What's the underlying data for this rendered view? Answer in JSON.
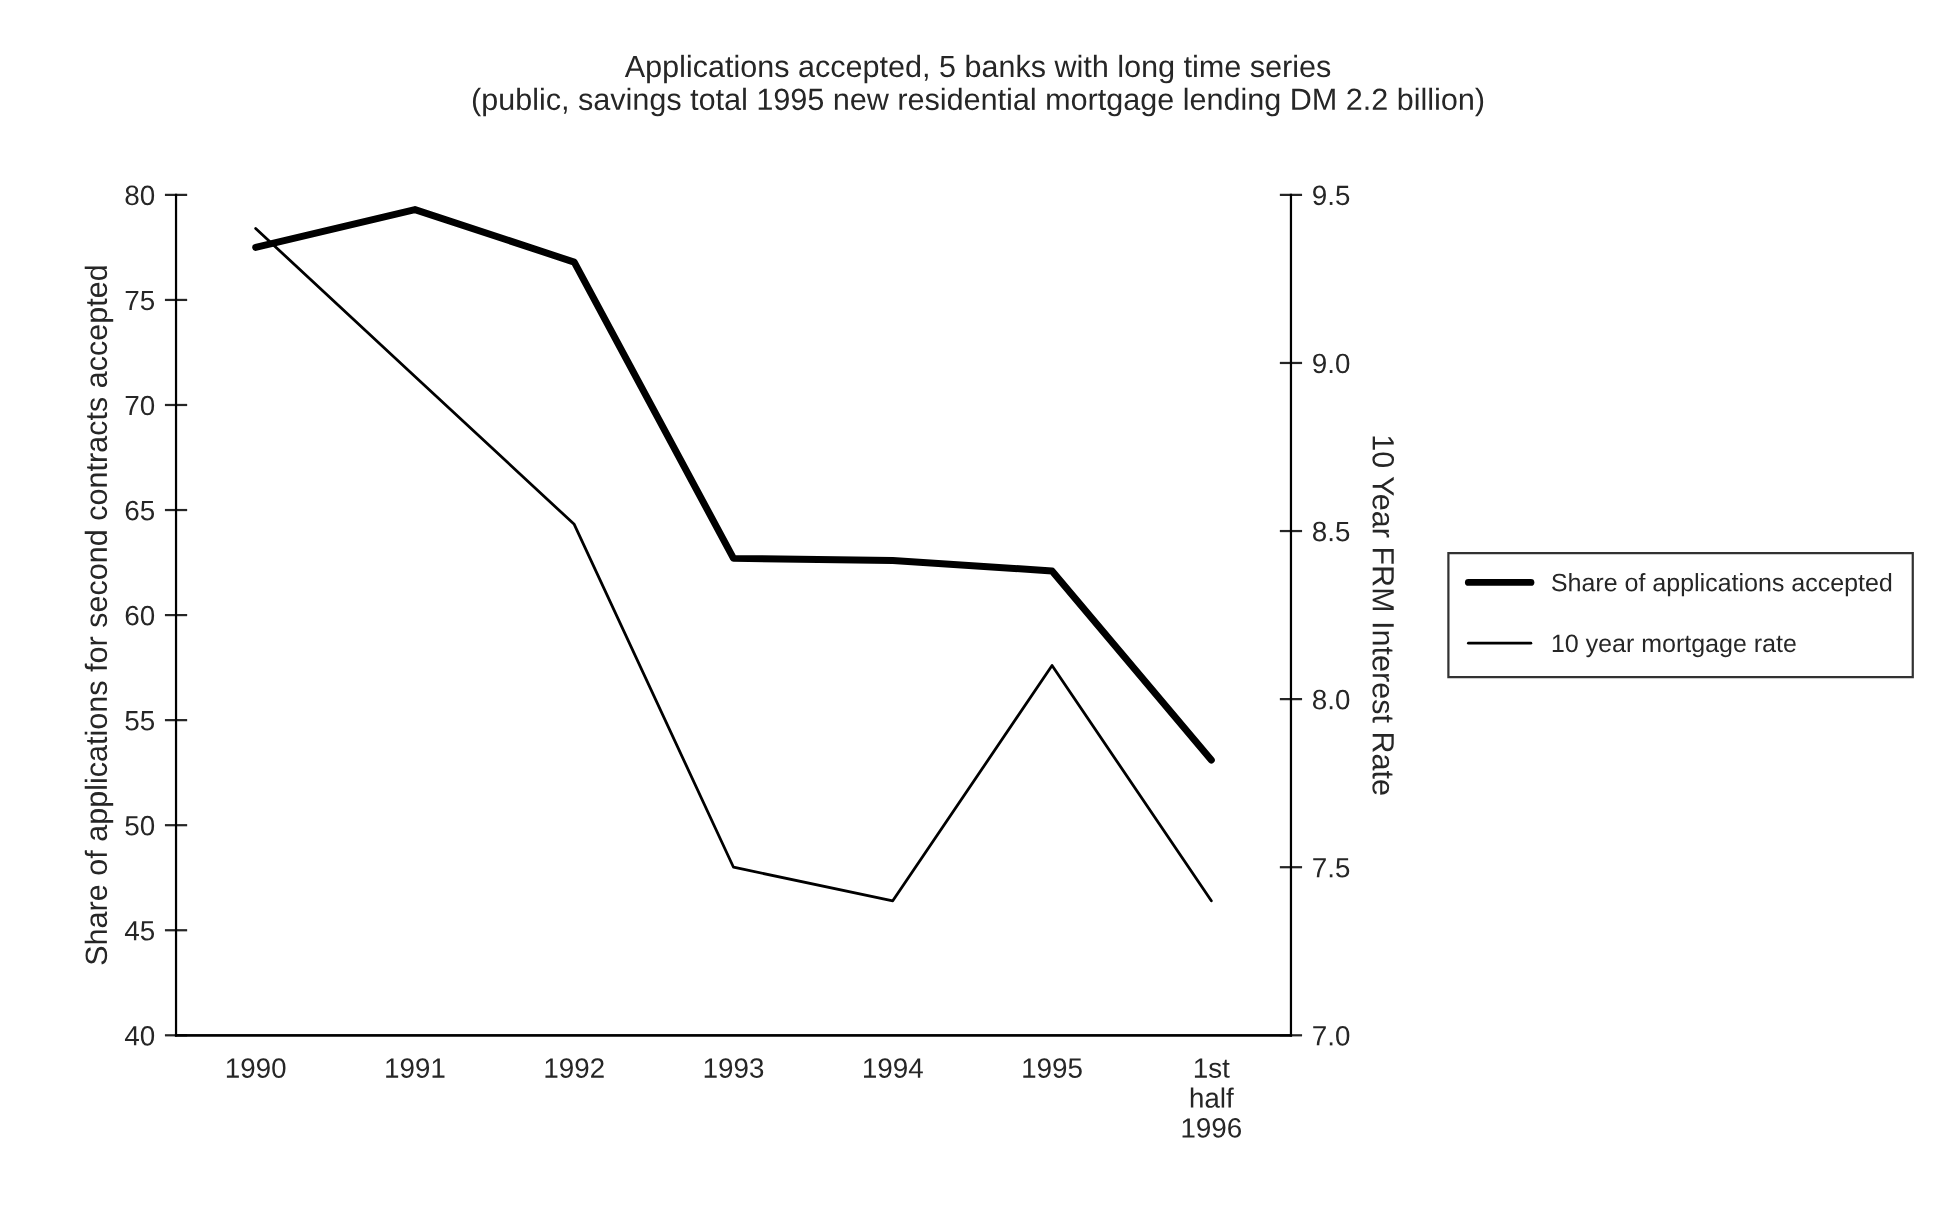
{
  "chart_data": {
    "type": "line",
    "title": "Applications accepted, 5 banks with long time series\n(public, savings total 1995 new residential mortgage lending DM 2.2 billion)",
    "ylabel": "Share of applications for second contracts accepted",
    "y2label": "10 Year FRM Interest Rate",
    "categories": [
      "1990",
      "1991",
      "1992",
      "1993",
      "1994",
      "1995",
      "1st\nhalf\n1996"
    ],
    "series": [
      {
        "name": "Share of applications accepted",
        "color": "#000000",
        "values": [
          77.5,
          79.3,
          76.8,
          62.7,
          62.6,
          62.1,
          53.1
        ]
      },
      {
        "name": "10 year mortgage rate",
        "color": "#000000",
        "axis": "y2",
        "values": [
          9.4,
          8.96,
          8.52,
          7.5,
          7.4,
          8.1,
          7.4
        ]
      }
    ],
    "ylim": [
      40,
      80
    ],
    "yticks": [
      40,
      45,
      50,
      55,
      60,
      65,
      70,
      75,
      80
    ],
    "y2lim": [
      7.0,
      9.5
    ],
    "y2ticks": [
      {
        "value": 7.0,
        "label": "7.0"
      },
      {
        "value": 7.5,
        "label": "7.5"
      },
      {
        "value": 8.0,
        "label": "8.0"
      },
      {
        "value": 8.5,
        "label": "8.5"
      },
      {
        "value": 9.0,
        "label": "9.0"
      },
      {
        "value": 9.5,
        "label": "9.5"
      }
    ],
    "grid": false,
    "legend": "right",
    "marker": "none",
    "line_style": "solid"
  }
}
